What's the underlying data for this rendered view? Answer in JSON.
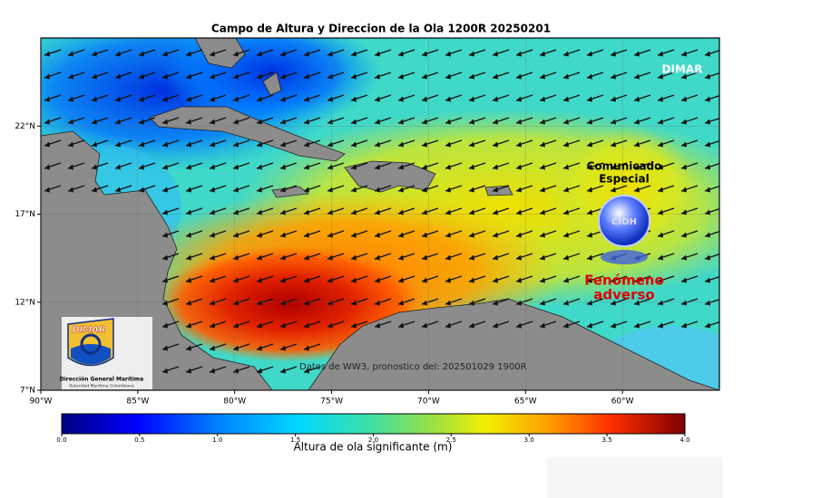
{
  "map": {
    "title": "Campo de Altura y Direccion de la Ola 1200R 20250201",
    "xlim": [
      -90,
      -55
    ],
    "ylim": [
      7,
      27
    ],
    "xticks": [
      {
        "value": -90,
        "label": "90°W"
      },
      {
        "value": -85,
        "label": "85°W"
      },
      {
        "value": -80,
        "label": "80°W"
      },
      {
        "value": -75,
        "label": "75°W"
      },
      {
        "value": -70,
        "label": "70°W"
      },
      {
        "value": -65,
        "label": "65°W"
      },
      {
        "value": -60,
        "label": "60°W"
      }
    ],
    "yticks": [
      {
        "value": 7,
        "label": "7°N"
      },
      {
        "value": 12,
        "label": "12°N"
      },
      {
        "value": 17,
        "label": "17°N"
      },
      {
        "value": 22,
        "label": "22°N"
      }
    ],
    "watermark": "DIMAR",
    "notice": [
      "Comunicado",
      "Especial"
    ],
    "badge": "CIOH",
    "warning": [
      "Fenómeno",
      "adverso"
    ],
    "source_note": "Datos de WW3, pronostico del: 202501029 1900R",
    "logo": {
      "name": "DIMAR",
      "org": "Dirección General Marítima",
      "sub": "Autoridad Marítima Colombiana"
    }
  },
  "colorbar": {
    "label": "Altura de ola significante (m)",
    "lim": [
      0,
      4
    ],
    "ticks": [
      {
        "value": 0,
        "label": "0.0"
      },
      {
        "value": 0.5,
        "label": "0.5"
      },
      {
        "value": 1,
        "label": "1.0"
      },
      {
        "value": 1.5,
        "label": "1.5"
      },
      {
        "value": 2,
        "label": "2.0"
      },
      {
        "value": 2.5,
        "label": "2.5"
      },
      {
        "value": 3,
        "label": "3.0"
      },
      {
        "value": 3.5,
        "label": "3.5"
      },
      {
        "value": 4,
        "label": "4.0"
      }
    ]
  }
}
